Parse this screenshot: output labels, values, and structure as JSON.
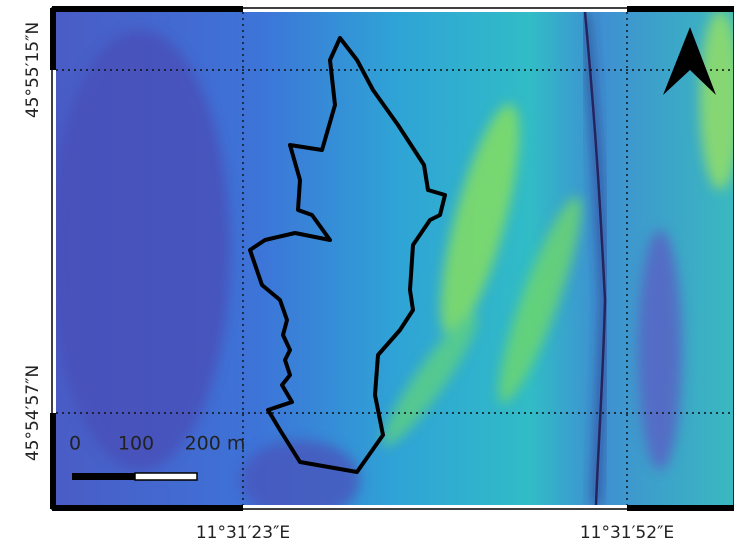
{
  "map": {
    "latitude_labels": [
      "45°55′15″N",
      "45°54′57″N"
    ],
    "longitude_labels": [
      "11°31′23″E",
      "11°31′52″E"
    ],
    "scale_bar": {
      "labels": [
        "0",
        "100",
        "200 m"
      ]
    }
  }
}
